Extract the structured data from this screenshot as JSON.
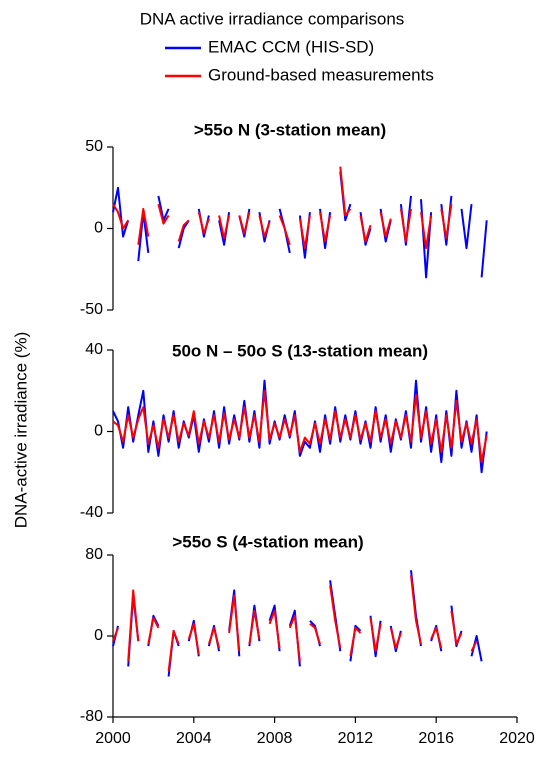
{
  "figure_title": "DNA active irradiance comparisons",
  "ylabel": "DNA-active irradiance (%)",
  "chart_data": [
    {
      "type": "line",
      "title": ">55o N (3-station mean)",
      "x": [
        2000,
        2000.25,
        2000.5,
        2000.75,
        2001,
        2001.25,
        2001.5,
        2001.75,
        2002,
        2002.25,
        2002.5,
        2002.75,
        2003,
        2003.25,
        2003.5,
        2003.75,
        2004,
        2004.25,
        2004.5,
        2004.75,
        2005,
        2005.25,
        2005.5,
        2005.75,
        2006,
        2006.25,
        2006.5,
        2006.75,
        2007,
        2007.25,
        2007.5,
        2007.75,
        2008,
        2008.25,
        2008.5,
        2008.75,
        2009,
        2009.25,
        2009.5,
        2009.75,
        2010,
        2010.25,
        2010.5,
        2010.75,
        2011,
        2011.25,
        2011.5,
        2011.75,
        2012,
        2012.25,
        2012.5,
        2012.75,
        2013,
        2013.25,
        2013.5,
        2013.75,
        2014,
        2014.25,
        2014.5,
        2014.75,
        2015,
        2015.25,
        2015.5,
        2015.75,
        2016,
        2016.25,
        2016.5,
        2016.75,
        2017,
        2017.25,
        2017.5,
        2017.75,
        2018,
        2018.25,
        2018.5
      ],
      "series": [
        {
          "name": "EMAC CCM (HIS-SD)",
          "color": "#0000ff",
          "values": [
            10,
            25,
            -5,
            5,
            null,
            -20,
            10,
            -15,
            null,
            20,
            5,
            12,
            null,
            -12,
            0,
            5,
            null,
            12,
            -5,
            8,
            null,
            5,
            -10,
            10,
            null,
            8,
            -5,
            12,
            null,
            10,
            -8,
            5,
            null,
            12,
            0,
            -15,
            null,
            8,
            -18,
            10,
            null,
            12,
            -12,
            10,
            null,
            35,
            5,
            15,
            null,
            10,
            -10,
            0,
            null,
            12,
            -8,
            5,
            null,
            15,
            -10,
            20,
            null,
            18,
            -30,
            10,
            null,
            15,
            -10,
            20,
            null,
            12,
            -12,
            15,
            null,
            -30,
            5
          ]
        },
        {
          "name": "Ground-based measurements",
          "color": "#ff0000",
          "values": [
            15,
            10,
            0,
            5,
            null,
            -10,
            12,
            -5,
            null,
            15,
            3,
            8,
            null,
            -8,
            2,
            5,
            null,
            10,
            -3,
            6,
            null,
            8,
            -6,
            8,
            null,
            8,
            -3,
            10,
            null,
            8,
            -5,
            4,
            null,
            8,
            0,
            -10,
            null,
            6,
            -12,
            8,
            null,
            10,
            -8,
            8,
            null,
            38,
            8,
            12,
            null,
            8,
            -8,
            2,
            null,
            10,
            -5,
            6,
            null,
            12,
            -8,
            12,
            null,
            10,
            -12,
            8,
            null,
            12,
            -6,
            15,
            null,
            null,
            null,
            null,
            null,
            null,
            null
          ]
        }
      ],
      "xlim": [
        2000,
        2020
      ],
      "ylim": [
        -50,
        50
      ],
      "yticks": [
        -50,
        0,
        50
      ]
    },
    {
      "type": "line",
      "title": "50o N – 50o S (13-station mean)",
      "x": [
        2000,
        2000.25,
        2000.5,
        2000.75,
        2001,
        2001.25,
        2001.5,
        2001.75,
        2002,
        2002.25,
        2002.5,
        2002.75,
        2003,
        2003.25,
        2003.5,
        2003.75,
        2004,
        2004.25,
        2004.5,
        2004.75,
        2005,
        2005.25,
        2005.5,
        2005.75,
        2006,
        2006.25,
        2006.5,
        2006.75,
        2007,
        2007.25,
        2007.5,
        2007.75,
        2008,
        2008.25,
        2008.5,
        2008.75,
        2009,
        2009.25,
        2009.5,
        2009.75,
        2010,
        2010.25,
        2010.5,
        2010.75,
        2011,
        2011.25,
        2011.5,
        2011.75,
        2012,
        2012.25,
        2012.5,
        2012.75,
        2013,
        2013.25,
        2013.5,
        2013.75,
        2014,
        2014.25,
        2014.5,
        2014.75,
        2015,
        2015.25,
        2015.5,
        2015.75,
        2016,
        2016.25,
        2016.5,
        2016.75,
        2017,
        2017.25,
        2017.5,
        2017.75,
        2018,
        2018.25,
        2018.5
      ],
      "series": [
        {
          "name": "EMAC CCM (HIS-SD)",
          "color": "#0000ff",
          "values": [
            10,
            5,
            -8,
            12,
            -5,
            8,
            20,
            -10,
            5,
            -12,
            8,
            -5,
            10,
            -8,
            5,
            -3,
            8,
            -10,
            6,
            -5,
            10,
            -8,
            12,
            -6,
            8,
            -4,
            15,
            -5,
            10,
            -8,
            25,
            -6,
            5,
            -4,
            8,
            -3,
            10,
            -12,
            -5,
            -8,
            5,
            -10,
            8,
            -6,
            12,
            -5,
            8,
            -4,
            10,
            -6,
            5,
            -8,
            12,
            -5,
            8,
            -10,
            6,
            -4,
            10,
            -8,
            25,
            -5,
            12,
            -10,
            8,
            -15,
            10,
            -12,
            20,
            -8,
            5,
            -10,
            8,
            -20,
            0
          ]
        },
        {
          "name": "Ground-based measurements",
          "color": "#ff0000",
          "values": [
            5,
            3,
            -5,
            8,
            -3,
            6,
            12,
            -6,
            3,
            -8,
            6,
            -3,
            8,
            -5,
            4,
            -2,
            10,
            -6,
            5,
            -3,
            8,
            -5,
            9,
            -4,
            6,
            -3,
            12,
            -3,
            8,
            -5,
            20,
            -4,
            4,
            -3,
            6,
            -2,
            8,
            -10,
            -3,
            -6,
            4,
            -6,
            6,
            -4,
            10,
            -3,
            6,
            -3,
            8,
            -4,
            4,
            -5,
            10,
            -3,
            6,
            -6,
            5,
            -3,
            8,
            -5,
            18,
            -3,
            10,
            -6,
            6,
            -10,
            8,
            -8,
            15,
            -5,
            4,
            -6,
            6,
            -15,
            -2
          ]
        }
      ],
      "xlim": [
        2000,
        2020
      ],
      "ylim": [
        -40,
        40
      ],
      "yticks": [
        -40,
        0,
        40
      ]
    },
    {
      "type": "line",
      "title": ">55o S (4-station mean)",
      "x": [
        2000,
        2000.25,
        2000.5,
        2000.75,
        2001,
        2001.25,
        2001.5,
        2001.75,
        2002,
        2002.25,
        2002.5,
        2002.75,
        2003,
        2003.25,
        2003.5,
        2003.75,
        2004,
        2004.25,
        2004.5,
        2004.75,
        2005,
        2005.25,
        2005.5,
        2005.75,
        2006,
        2006.25,
        2006.5,
        2006.75,
        2007,
        2007.25,
        2007.5,
        2007.75,
        2008,
        2008.25,
        2008.5,
        2008.75,
        2009,
        2009.25,
        2009.5,
        2009.75,
        2010,
        2010.25,
        2010.5,
        2010.75,
        2011,
        2011.25,
        2011.5,
        2011.75,
        2012,
        2012.25,
        2012.5,
        2012.75,
        2013,
        2013.25,
        2013.5,
        2013.75,
        2014,
        2014.25,
        2014.5,
        2014.75,
        2015,
        2015.25,
        2015.5,
        2015.75,
        2016,
        2016.25,
        2016.5,
        2016.75,
        2017,
        2017.25,
        2017.5,
        2017.75,
        2018,
        2018.25,
        2018.5
      ],
      "series": [
        {
          "name": "EMAC CCM (HIS-SD)",
          "color": "#0000ff",
          "values": [
            -10,
            10,
            null,
            -30,
            40,
            -5,
            null,
            -10,
            20,
            10,
            null,
            -40,
            5,
            -10,
            null,
            -5,
            15,
            -20,
            null,
            -10,
            10,
            -15,
            null,
            5,
            45,
            -20,
            null,
            -10,
            30,
            -5,
            null,
            15,
            30,
            -15,
            null,
            10,
            25,
            -30,
            null,
            15,
            10,
            -10,
            null,
            55,
            20,
            -15,
            null,
            -25,
            10,
            5,
            null,
            20,
            -20,
            15,
            null,
            10,
            -15,
            5,
            null,
            65,
            20,
            -10,
            null,
            -5,
            10,
            -15,
            null,
            30,
            -10,
            5,
            null,
            -20,
            0,
            -25,
            null
          ]
        },
        {
          "name": "Ground-based measurements",
          "color": "#ff0000",
          "values": [
            -5,
            8,
            null,
            -25,
            45,
            -5,
            null,
            -8,
            18,
            8,
            null,
            -35,
            5,
            -8,
            null,
            -3,
            12,
            -18,
            null,
            -8,
            8,
            -12,
            null,
            3,
            40,
            -15,
            null,
            -8,
            25,
            -3,
            null,
            12,
            25,
            -12,
            null,
            8,
            20,
            -25,
            null,
            12,
            8,
            -8,
            null,
            50,
            15,
            -12,
            null,
            -20,
            8,
            3,
            null,
            18,
            -15,
            12,
            null,
            8,
            -12,
            3,
            null,
            60,
            15,
            -8,
            null,
            -3,
            8,
            -12,
            null,
            25,
            -8,
            3,
            null,
            -15,
            -5,
            null,
            null
          ]
        }
      ],
      "xlim": [
        2000,
        2020
      ],
      "ylim": [
        -80,
        80
      ],
      "yticks": [
        -80,
        0,
        80
      ],
      "xticks": [
        2000,
        2004,
        2008,
        2012,
        2016,
        2020
      ]
    }
  ]
}
